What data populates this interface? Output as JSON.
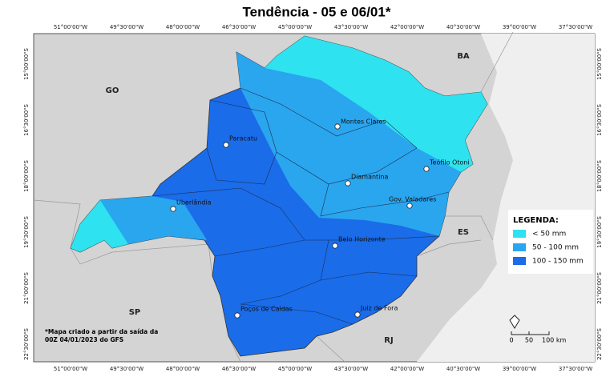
{
  "title": "Tendência - 05 e 06/01*",
  "longitudes": [
    "51°00'00\"W",
    "49°30'00\"W",
    "48°00'00\"W",
    "46°30'00\"W",
    "45°00'00\"W",
    "43°30'00\"W",
    "42°00'00\"W",
    "40°30'00\"W",
    "39°00'00\"W",
    "37°30'00\"W"
  ],
  "latitudes": [
    "15°00'00\"S",
    "16°30'00\"S",
    "18°00'00\"S",
    "19°30'00\"S",
    "21°00'00\"S",
    "22°30'00\"S"
  ],
  "states": [
    "GO",
    "BA",
    "ES",
    "SP",
    "RJ"
  ],
  "cities": [
    "Montes Claros",
    "Paracatu",
    "Teófilo Otoni",
    "Diamantina",
    "Uberlândia",
    "Gov. Valadares",
    "Belo Horizonte",
    "Poços de Caldas",
    "Juiz de Fora"
  ],
  "legend": {
    "title": "LEGENDA:",
    "items": [
      {
        "label": "< 50 mm",
        "color": "#2fe2ef"
      },
      {
        "label": "50 - 100 mm",
        "color": "#2aa6ee"
      },
      {
        "label": "100 - 150 mm",
        "color": "#1a6ce9"
      }
    ]
  },
  "note": [
    "*Mapa criado a partir da saída da",
    "00Z 04/01/2023 do GFS"
  ],
  "scale": [
    "0",
    "50",
    "100 km"
  ]
}
